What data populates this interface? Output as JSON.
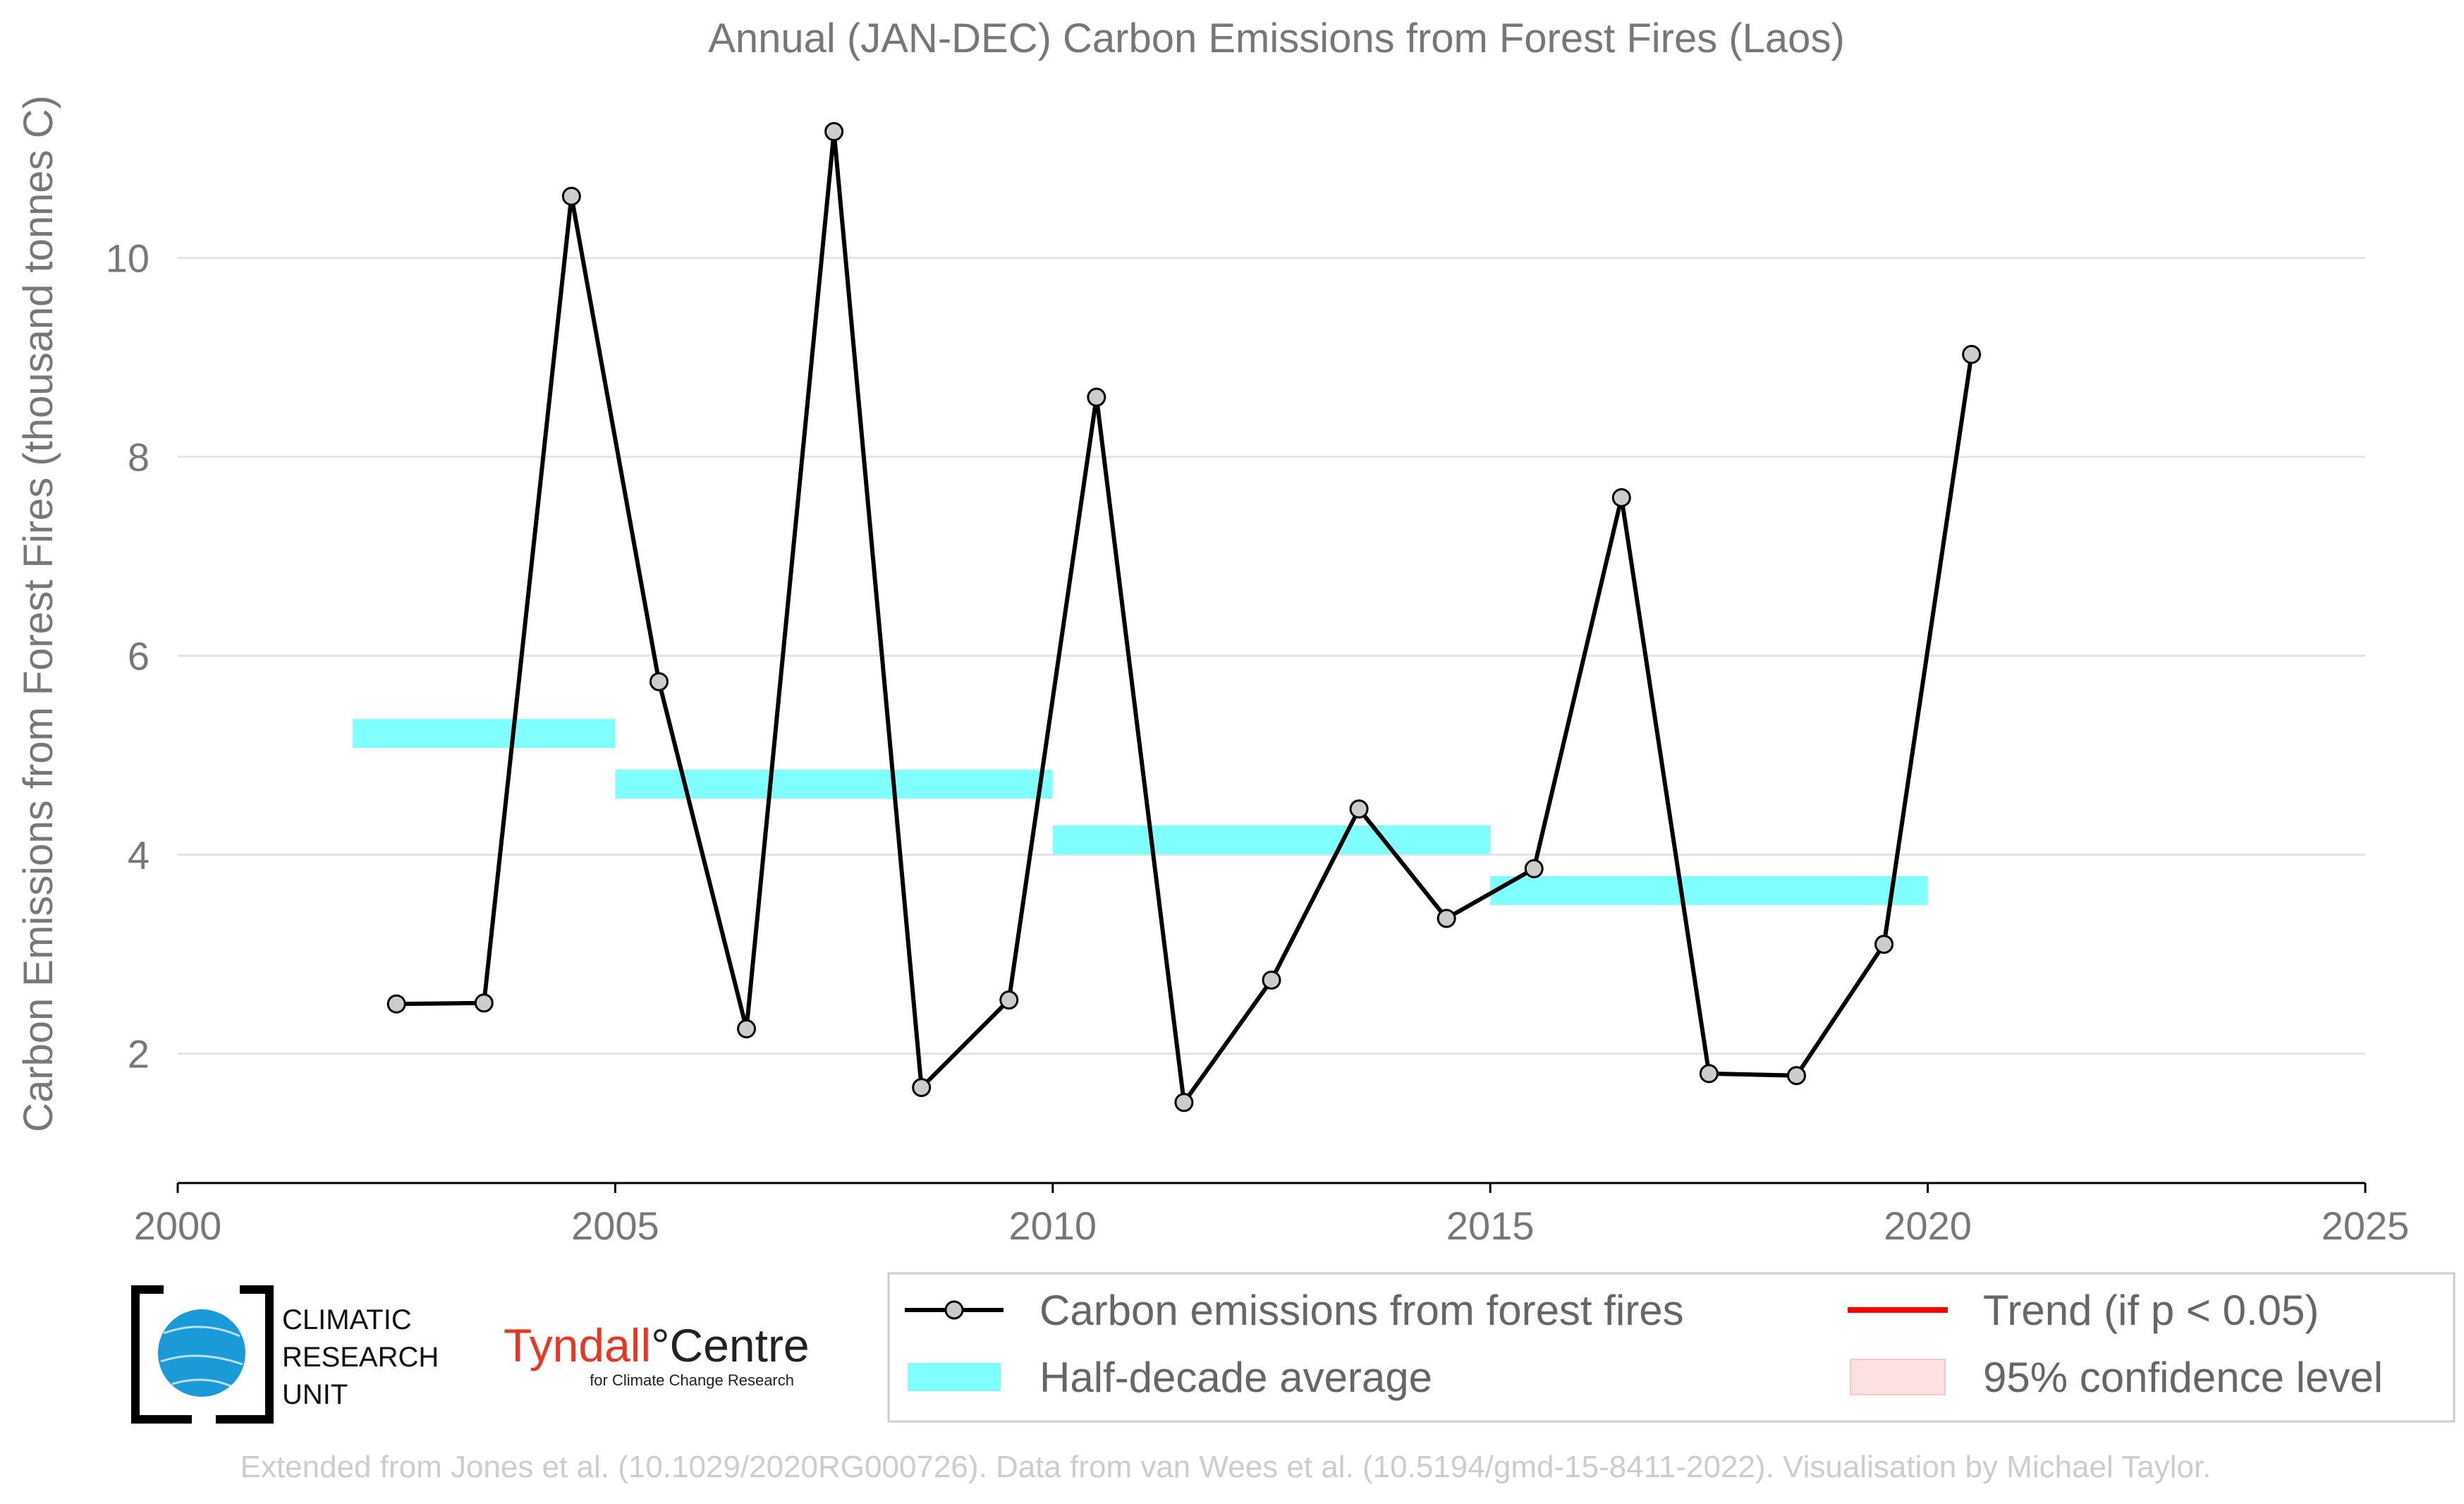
{
  "chart_data": {
    "type": "line",
    "title": "Annual (JAN-DEC) Carbon Emissions from Forest Fires (Laos)",
    "ylabel": "Carbon Emissions from Forest Fires (thousand tonnes C)",
    "xlabel": "",
    "xlim": [
      2000,
      2025
    ],
    "ylim": [
      0.7,
      11.6
    ],
    "xticks": [
      "2000",
      "2005",
      "2010",
      "2015",
      "2020",
      "2025"
    ],
    "yticks": [
      "2",
      "4",
      "6",
      "8",
      "10"
    ],
    "grid": "horizontal",
    "legend_position": "bottom-right",
    "series": [
      {
        "name": "Carbon emissions from forest fires",
        "color": "#000000",
        "marker_color": "#cccccc",
        "x": [
          2002.5,
          2003.5,
          2004.5,
          2005.5,
          2006.5,
          2007.5,
          2008.5,
          2009.5,
          2010.5,
          2011.5,
          2012.5,
          2013.5,
          2014.5,
          2015.5,
          2016.5,
          2017.5,
          2018.5,
          2019.5,
          2020.5
        ],
        "values": [
          2.5,
          2.51,
          10.62,
          5.74,
          2.25,
          11.27,
          1.66,
          2.54,
          8.6,
          1.51,
          2.74,
          4.46,
          3.36,
          3.86,
          7.59,
          1.8,
          1.78,
          3.1,
          9.03
        ]
      }
    ],
    "half_decade_average": {
      "name": "Half-decade average",
      "color": "#80ffff",
      "segments": [
        {
          "x_start": 2002,
          "x_end": 2005,
          "value": 5.22
        },
        {
          "x_start": 2005,
          "x_end": 2010,
          "value": 4.71
        },
        {
          "x_start": 2010,
          "x_end": 2015,
          "value": 4.15
        },
        {
          "x_start": 2015,
          "x_end": 2020,
          "value": 3.64
        }
      ]
    },
    "legend": [
      {
        "label": "Carbon emissions from forest fires",
        "kind": "line-marker",
        "color": "#000000"
      },
      {
        "label": "Trend (if p < 0.05)",
        "kind": "line",
        "color": "#ff0000"
      },
      {
        "label": "Half-decade average",
        "kind": "band",
        "color": "#80ffff"
      },
      {
        "label": "95% confidence level",
        "kind": "band",
        "color": "#fde0e0"
      }
    ]
  },
  "logos": {
    "cru": {
      "lines": [
        "CLIMATIC",
        "RESEARCH",
        "UNIT"
      ]
    },
    "tyndall": {
      "main": "Tyndall",
      "degree": "°",
      "centre": "Centre",
      "sub": "for Climate Change Research"
    }
  },
  "footer": "Extended from Jones et al. (10.1029/2020RG000726). Data from van Wees et al. (10.5194/gmd-15-8411-2022). Visualisation by Michael Taylor."
}
